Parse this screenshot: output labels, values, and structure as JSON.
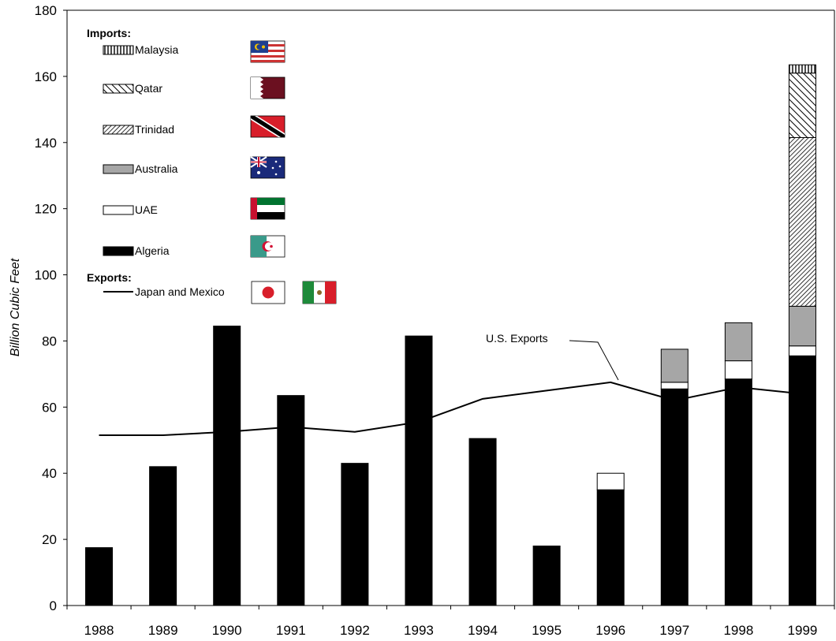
{
  "chart_data": {
    "type": "bar",
    "stacked": true,
    "categories": [
      "1988",
      "1989",
      "1990",
      "1991",
      "1992",
      "1993",
      "1994",
      "1995",
      "1996",
      "1997",
      "1998",
      "1999"
    ],
    "ylabel": "Billion Cubic Feet",
    "xlabel": "",
    "ylim": [
      0,
      180
    ],
    "yticks": [
      0,
      20,
      40,
      60,
      80,
      100,
      120,
      140,
      160,
      180
    ],
    "grid": false,
    "legend_position": "top-left",
    "legend": {
      "imports_heading": "Imports:",
      "exports_heading": "Exports:"
    },
    "series": [
      {
        "name": "Algeria",
        "group": "imports",
        "fill": "solid-black",
        "values": [
          17.5,
          42,
          84.5,
          63.5,
          43,
          81.5,
          50.5,
          18,
          35,
          65.5,
          68.5,
          75.5
        ],
        "flag": "algeria-flag"
      },
      {
        "name": "UAE",
        "group": "imports",
        "fill": "white",
        "values": [
          0,
          0,
          0,
          0,
          0,
          0,
          0,
          0,
          5,
          2,
          5.5,
          3
        ],
        "flag": "uae-flag"
      },
      {
        "name": "Australia",
        "group": "imports",
        "fill": "gray",
        "values": [
          0,
          0,
          0,
          0,
          0,
          0,
          0,
          0,
          0,
          10,
          11.5,
          12
        ],
        "flag": "australia-flag"
      },
      {
        "name": "Trinidad",
        "group": "imports",
        "fill": "dense-diagonal-hatch",
        "values": [
          0,
          0,
          0,
          0,
          0,
          0,
          0,
          0,
          0,
          0,
          0,
          51
        ],
        "flag": "trinidad-flag"
      },
      {
        "name": "Qatar",
        "group": "imports",
        "fill": "diagonal-hatch",
        "values": [
          0,
          0,
          0,
          0,
          0,
          0,
          0,
          0,
          0,
          0,
          0,
          19.5
        ],
        "flag": "qatar-flag"
      },
      {
        "name": "Malaysia",
        "group": "imports",
        "fill": "vertical-stripes",
        "values": [
          0,
          0,
          0,
          0,
          0,
          0,
          0,
          0,
          0,
          0,
          0,
          2.5
        ],
        "flag": "malaysia-flag"
      }
    ],
    "line_series": [
      {
        "name": "Japan and Mexico",
        "group": "exports",
        "values": [
          51.5,
          51.5,
          52.5,
          54,
          52.5,
          55.5,
          62.5,
          65,
          67.5,
          62,
          66,
          64
        ],
        "flags": [
          "japan-flag",
          "mexico-flag"
        ]
      }
    ],
    "annotations": [
      {
        "text": "U.S. Exports",
        "target_category": "1996"
      }
    ],
    "colors": {
      "black": "#000000",
      "gray": "#a6a6a6",
      "white": "#ffffff"
    }
  }
}
